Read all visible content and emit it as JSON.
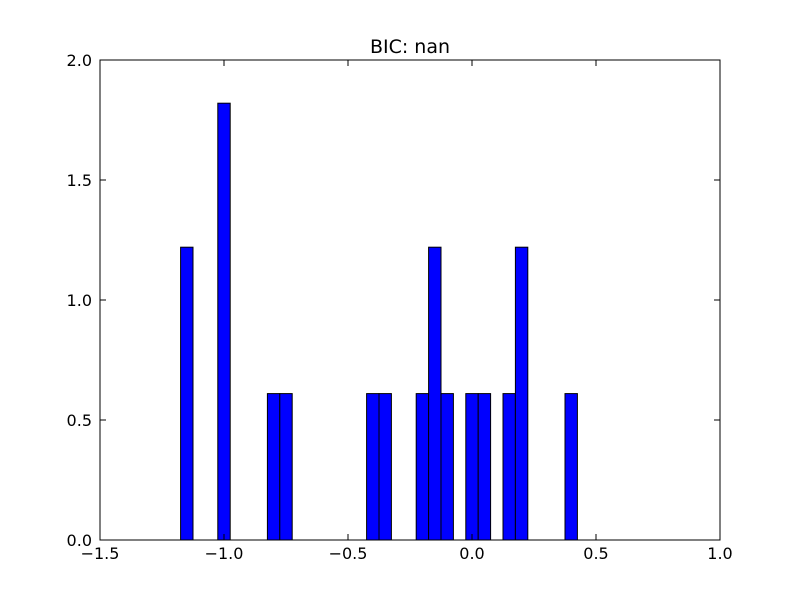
{
  "chart_data": {
    "type": "bar",
    "title": "BIC: nan",
    "xlabel": "",
    "ylabel": "",
    "xlim": [
      -1.5,
      1.0
    ],
    "ylim": [
      0.0,
      2.0
    ],
    "xticks": [
      -1.5,
      -1.0,
      -0.5,
      0.0,
      0.5,
      1.0
    ],
    "xtick_labels": [
      "−1.5",
      "−1.0",
      "−0.5",
      "0.0",
      "0.5",
      "1.0"
    ],
    "yticks": [
      0.0,
      0.5,
      1.0,
      1.5,
      2.0
    ],
    "ytick_labels": [
      "0.0",
      "0.5",
      "1.0",
      "1.5",
      "2.0"
    ],
    "grid": false,
    "bar_color": "#0000ff",
    "edge_color": "#000000",
    "bins": [
      {
        "x0": -1.175,
        "x1": -1.125,
        "value": 1.22
      },
      {
        "x0": -1.125,
        "x1": -1.075,
        "value": 0
      },
      {
        "x0": -1.075,
        "x1": -1.025,
        "value": 0
      },
      {
        "x0": -1.025,
        "x1": -0.975,
        "value": 1.82
      },
      {
        "x0": -0.975,
        "x1": -0.925,
        "value": 0
      },
      {
        "x0": -0.925,
        "x1": -0.875,
        "value": 0
      },
      {
        "x0": -0.875,
        "x1": -0.825,
        "value": 0
      },
      {
        "x0": -0.825,
        "x1": -0.775,
        "value": 0.61
      },
      {
        "x0": -0.775,
        "x1": -0.725,
        "value": 0.61
      },
      {
        "x0": -0.725,
        "x1": -0.675,
        "value": 0
      },
      {
        "x0": -0.675,
        "x1": -0.625,
        "value": 0
      },
      {
        "x0": -0.625,
        "x1": -0.575,
        "value": 0
      },
      {
        "x0": -0.575,
        "x1": -0.525,
        "value": 0
      },
      {
        "x0": -0.525,
        "x1": -0.475,
        "value": 0
      },
      {
        "x0": -0.475,
        "x1": -0.425,
        "value": 0
      },
      {
        "x0": -0.425,
        "x1": -0.375,
        "value": 0.61
      },
      {
        "x0": -0.375,
        "x1": -0.325,
        "value": 0.61
      },
      {
        "x0": -0.325,
        "x1": -0.275,
        "value": 0
      },
      {
        "x0": -0.275,
        "x1": -0.225,
        "value": 0
      },
      {
        "x0": -0.225,
        "x1": -0.175,
        "value": 0.61
      },
      {
        "x0": -0.175,
        "x1": -0.125,
        "value": 1.22
      },
      {
        "x0": -0.125,
        "x1": -0.075,
        "value": 0.61
      },
      {
        "x0": -0.075,
        "x1": -0.025,
        "value": 0
      },
      {
        "x0": -0.025,
        "x1": 0.025,
        "value": 0.61
      },
      {
        "x0": 0.025,
        "x1": 0.075,
        "value": 0.61
      },
      {
        "x0": 0.075,
        "x1": 0.125,
        "value": 0
      },
      {
        "x0": 0.125,
        "x1": 0.175,
        "value": 0.61
      },
      {
        "x0": 0.175,
        "x1": 0.225,
        "value": 1.22
      },
      {
        "x0": 0.225,
        "x1": 0.275,
        "value": 0
      },
      {
        "x0": 0.275,
        "x1": 0.325,
        "value": 0
      },
      {
        "x0": 0.325,
        "x1": 0.375,
        "value": 0
      },
      {
        "x0": 0.375,
        "x1": 0.425,
        "value": 0.61
      }
    ]
  }
}
